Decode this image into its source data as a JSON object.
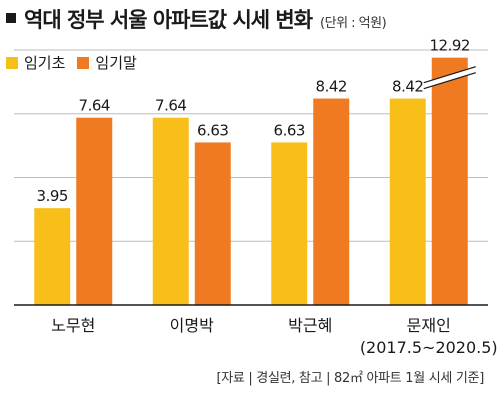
{
  "title": "역대 정부 서울 아파트값 시세 변화",
  "unit_note": "(단위 : 억원)",
  "source": "[자료 | 경실련, 참고 | 82㎡ 아파트 1월 시세 기준]",
  "colors": {
    "start": "#f8bf1b",
    "end": "#ef7a21"
  },
  "chart_data": {
    "type": "bar",
    "categories": [
      "노무현",
      "이명박",
      "박근혜",
      "문재인"
    ],
    "category_sublabels": [
      "",
      "",
      "",
      "(2017.5~2020.5)"
    ],
    "series": [
      {
        "name": "임기초",
        "values": [
          3.95,
          7.64,
          6.63,
          8.42
        ]
      },
      {
        "name": "임기말",
        "values": [
          7.64,
          6.63,
          8.42,
          12.92
        ]
      }
    ],
    "value_labels": [
      [
        "3.95",
        "7.64",
        "6.63",
        "8.42"
      ],
      [
        "7.64",
        "6.63",
        "8.42",
        "12.92"
      ]
    ],
    "axis_break": {
      "series": 1,
      "category": 3
    },
    "ylim": [
      0,
      10.4
    ],
    "grid": true,
    "legend": "top-left"
  }
}
